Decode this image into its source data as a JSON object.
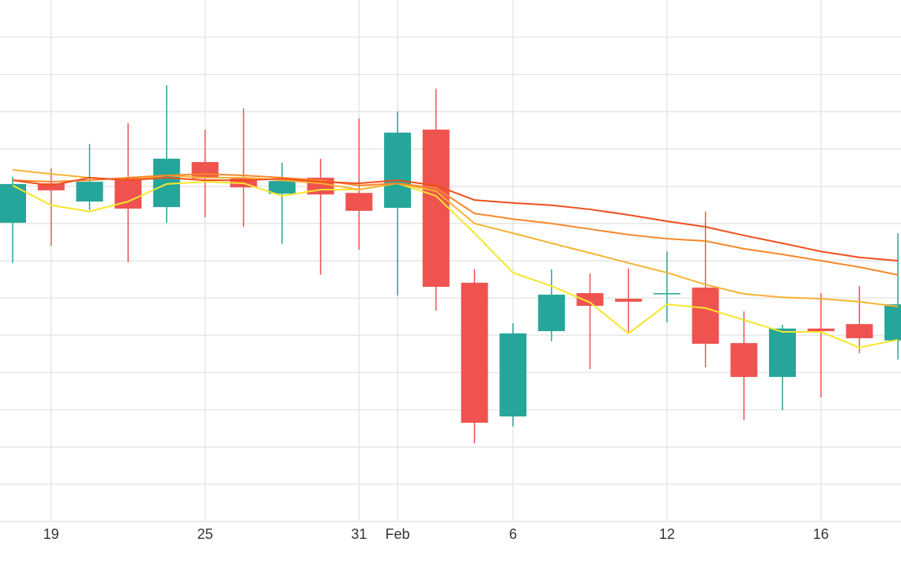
{
  "chart_data": {
    "type": "candlestick",
    "categories": [
      null,
      "19",
      null,
      null,
      null,
      "25",
      null,
      null,
      null,
      "31",
      "Feb",
      null,
      null,
      "6",
      null,
      null,
      null,
      "12",
      null,
      null,
      null,
      "16",
      null,
      null
    ],
    "open": [
      8.02,
      9.08,
      8.59,
      9.23,
      8.44,
      9.65,
      9.23,
      8.8,
      9.23,
      8.82,
      8.42,
      10.52,
      6.41,
      2.82,
      5.11,
      6.13,
      5.98,
      6.13,
      6.28,
      4.79,
      3.88,
      5.18,
      5.3,
      4.86
    ],
    "high": [
      9.25,
      9.48,
      10.14,
      10.69,
      11.71,
      10.52,
      11.09,
      9.63,
      9.74,
      10.82,
      11.01,
      11.62,
      6.77,
      5.32,
      6.77,
      6.66,
      6.79,
      7.25,
      8.32,
      5.64,
      5.28,
      6.13,
      6.32,
      7.74
    ],
    "low": [
      6.94,
      7.4,
      8.36,
      6.96,
      8.02,
      8.17,
      7.91,
      7.45,
      6.62,
      7.3,
      6.07,
      5.66,
      2.1,
      2.55,
      4.84,
      4.09,
      5.09,
      5.35,
      4.14,
      2.72,
      2.99,
      3.33,
      4.52,
      4.35
    ],
    "close": [
      9.06,
      8.89,
      9.12,
      8.4,
      9.74,
      9.21,
      8.97,
      9.14,
      8.78,
      8.34,
      10.44,
      6.3,
      2.65,
      5.05,
      6.09,
      5.79,
      5.9,
      6.13,
      4.77,
      3.88,
      5.18,
      5.11,
      4.92,
      5.83
    ],
    "up_color": "#26a69a",
    "down_color": "#ef5350",
    "lines": [
      {
        "color": "#f7e62a",
        "values": [
          9.02,
          8.49,
          8.32,
          8.59,
          9.06,
          9.12,
          9.08,
          8.74,
          8.91,
          8.91,
          9.08,
          8.74,
          7.74,
          6.68,
          6.32,
          5.88,
          5.05,
          5.83,
          5.73,
          5.41,
          5.09,
          5.09,
          4.67,
          4.88
        ]
      },
      {
        "color": "#f9b233",
        "values": [
          9.44,
          9.33,
          9.23,
          9.16,
          9.29,
          9.23,
          9.23,
          9.16,
          9.08,
          8.91,
          9.08,
          8.87,
          8.0,
          7.74,
          7.47,
          7.21,
          6.94,
          6.68,
          6.36,
          6.11,
          6.02,
          5.98,
          5.9,
          5.77
        ]
      },
      {
        "color": "#f7882a",
        "values": [
          9.16,
          9.12,
          9.16,
          9.23,
          9.29,
          9.33,
          9.29,
          9.23,
          9.16,
          9.02,
          9.08,
          8.95,
          8.27,
          8.12,
          8.0,
          7.85,
          7.7,
          7.59,
          7.53,
          7.32,
          7.17,
          7.0,
          6.83,
          6.62
        ]
      },
      {
        "color": "#ef4f1c",
        "values": [
          9.16,
          9.02,
          9.23,
          9.16,
          9.23,
          9.16,
          9.16,
          9.2,
          9.12,
          9.08,
          9.16,
          9.02,
          8.63,
          8.55,
          8.49,
          8.38,
          8.23,
          8.06,
          7.91,
          7.68,
          7.47,
          7.25,
          7.09,
          7.0
        ]
      }
    ],
    "ylim": [
      0,
      14
    ],
    "yticks": [
      1,
      2,
      3,
      4,
      5,
      6,
      7,
      8,
      9,
      10,
      11,
      12,
      13
    ],
    "grid": true
  }
}
